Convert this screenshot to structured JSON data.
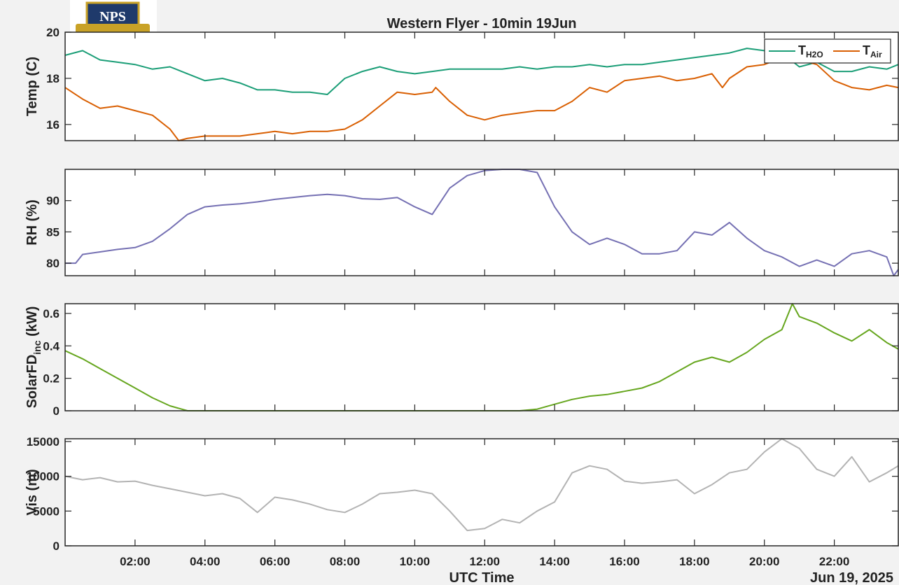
{
  "title": "Western Flyer - 10min 19Jun",
  "logo_text": "NPS",
  "xlabel": "UTC Time",
  "date_label": "Jun 19, 2025",
  "x_ticks": [
    "02:00",
    "04:00",
    "06:00",
    "08:00",
    "10:00",
    "12:00",
    "14:00",
    "16:00",
    "18:00",
    "20:00",
    "22:00"
  ],
  "x_range_hours": [
    0,
    23.83
  ],
  "colors": {
    "h2o": "#1b9e77",
    "air": "#d95f02",
    "rh": "#7570b3",
    "solar": "#66a61e",
    "vis": "#b3b3b3"
  },
  "chart_data": [
    {
      "type": "line",
      "ylabel": "Temp (C)",
      "ylim": [
        15.3,
        20
      ],
      "yticks": [
        16,
        18,
        20
      ],
      "legend": "top-right",
      "series": [
        {
          "name": "T_H2O",
          "label_main": "T",
          "label_sub": "H2O",
          "color_key": "h2o",
          "points": [
            [
              0,
              19.0
            ],
            [
              0.5,
              19.2
            ],
            [
              1,
              18.8
            ],
            [
              1.5,
              18.7
            ],
            [
              2,
              18.6
            ],
            [
              2.5,
              18.4
            ],
            [
              3,
              18.5
            ],
            [
              3.5,
              18.2
            ],
            [
              4,
              17.9
            ],
            [
              4.5,
              18.0
            ],
            [
              5,
              17.8
            ],
            [
              5.5,
              17.5
            ],
            [
              6,
              17.5
            ],
            [
              6.5,
              17.4
            ],
            [
              7,
              17.4
            ],
            [
              7.5,
              17.3
            ],
            [
              8,
              18.0
            ],
            [
              8.5,
              18.3
            ],
            [
              9,
              18.5
            ],
            [
              9.5,
              18.3
            ],
            [
              10,
              18.2
            ],
            [
              10.5,
              18.3
            ],
            [
              11,
              18.4
            ],
            [
              11.5,
              18.4
            ],
            [
              12,
              18.4
            ],
            [
              12.5,
              18.4
            ],
            [
              13,
              18.5
            ],
            [
              13.5,
              18.4
            ],
            [
              14,
              18.5
            ],
            [
              14.5,
              18.5
            ],
            [
              15,
              18.6
            ],
            [
              15.5,
              18.5
            ],
            [
              16,
              18.6
            ],
            [
              16.5,
              18.6
            ],
            [
              17,
              18.7
            ],
            [
              17.5,
              18.8
            ],
            [
              18,
              18.9
            ],
            [
              18.5,
              19.0
            ],
            [
              19,
              19.1
            ],
            [
              19.5,
              19.3
            ],
            [
              20,
              19.2
            ],
            [
              20.5,
              19.1
            ],
            [
              21,
              18.5
            ],
            [
              21.5,
              18.7
            ],
            [
              22,
              18.3
            ],
            [
              22.5,
              18.3
            ],
            [
              23,
              18.5
            ],
            [
              23.5,
              18.4
            ],
            [
              23.83,
              18.6
            ]
          ]
        },
        {
          "name": "T_Air",
          "label_main": "T",
          "label_sub": "Air",
          "color_key": "air",
          "points": [
            [
              0,
              17.6
            ],
            [
              0.5,
              17.1
            ],
            [
              1,
              16.7
            ],
            [
              1.5,
              16.8
            ],
            [
              2,
              16.6
            ],
            [
              2.5,
              16.4
            ],
            [
              3,
              15.8
            ],
            [
              3.25,
              15.3
            ],
            [
              3.5,
              15.4
            ],
            [
              4,
              15.5
            ],
            [
              4.5,
              15.5
            ],
            [
              5,
              15.5
            ],
            [
              5.5,
              15.6
            ],
            [
              6,
              15.7
            ],
            [
              6.5,
              15.6
            ],
            [
              7,
              15.7
            ],
            [
              7.5,
              15.7
            ],
            [
              8,
              15.8
            ],
            [
              8.5,
              16.2
            ],
            [
              9,
              16.8
            ],
            [
              9.5,
              17.4
            ],
            [
              10,
              17.3
            ],
            [
              10.5,
              17.4
            ],
            [
              10.6,
              17.6
            ],
            [
              11,
              17.0
            ],
            [
              11.5,
              16.4
            ],
            [
              12,
              16.2
            ],
            [
              12.5,
              16.4
            ],
            [
              13,
              16.5
            ],
            [
              13.5,
              16.6
            ],
            [
              14,
              16.6
            ],
            [
              14.5,
              17.0
            ],
            [
              15,
              17.6
            ],
            [
              15.5,
              17.4
            ],
            [
              16,
              17.9
            ],
            [
              16.5,
              18.0
            ],
            [
              17,
              18.1
            ],
            [
              17.5,
              17.9
            ],
            [
              18,
              18.0
            ],
            [
              18.5,
              18.2
            ],
            [
              18.8,
              17.6
            ],
            [
              19,
              18.0
            ],
            [
              19.5,
              18.5
            ],
            [
              20,
              18.6
            ],
            [
              20.5,
              18.9
            ],
            [
              21,
              18.8
            ],
            [
              21.5,
              18.6
            ],
            [
              22,
              17.9
            ],
            [
              22.5,
              17.6
            ],
            [
              23,
              17.5
            ],
            [
              23.5,
              17.7
            ],
            [
              23.83,
              17.6
            ]
          ]
        }
      ]
    },
    {
      "type": "line",
      "ylabel": "RH (%)",
      "ylim": [
        78,
        95
      ],
      "yticks": [
        80,
        85,
        90
      ],
      "series": [
        {
          "name": "",
          "color_key": "rh",
          "points": [
            [
              0,
              80.0
            ],
            [
              0.3,
              80.0
            ],
            [
              0.5,
              81.4
            ],
            [
              1,
              81.8
            ],
            [
              1.5,
              82.2
            ],
            [
              2,
              82.5
            ],
            [
              2.5,
              83.5
            ],
            [
              3,
              85.5
            ],
            [
              3.5,
              87.8
            ],
            [
              4,
              89.0
            ],
            [
              4.5,
              89.3
            ],
            [
              5,
              89.5
            ],
            [
              5.5,
              89.8
            ],
            [
              6,
              90.2
            ],
            [
              6.5,
              90.5
            ],
            [
              7,
              90.8
            ],
            [
              7.5,
              91.0
            ],
            [
              8,
              90.8
            ],
            [
              8.5,
              90.3
            ],
            [
              9,
              90.2
            ],
            [
              9.5,
              90.5
            ],
            [
              10,
              89.0
            ],
            [
              10.5,
              87.8
            ],
            [
              11,
              92.0
            ],
            [
              11.5,
              94.0
            ],
            [
              12,
              94.8
            ],
            [
              12.5,
              95.0
            ],
            [
              13,
              95.0
            ],
            [
              13.5,
              94.5
            ],
            [
              14,
              89.0
            ],
            [
              14.5,
              85.0
            ],
            [
              15,
              83.0
            ],
            [
              15.5,
              84.0
            ],
            [
              16,
              83.0
            ],
            [
              16.5,
              81.5
            ],
            [
              17,
              81.5
            ],
            [
              17.5,
              82.0
            ],
            [
              18,
              85.0
            ],
            [
              18.5,
              84.5
            ],
            [
              19,
              86.5
            ],
            [
              19.5,
              84.0
            ],
            [
              20,
              82.0
            ],
            [
              20.5,
              81.0
            ],
            [
              21,
              79.5
            ],
            [
              21.5,
              80.5
            ],
            [
              22,
              79.5
            ],
            [
              22.5,
              81.5
            ],
            [
              23,
              82.0
            ],
            [
              23.5,
              81.0
            ],
            [
              23.7,
              78.0
            ],
            [
              23.83,
              79.0
            ]
          ]
        }
      ]
    },
    {
      "type": "line",
      "ylabel": "SolarFD",
      "ylabel_sub": "inc",
      "ylabel_unit": "(kW)",
      "ylim": [
        0,
        0.66
      ],
      "yticks": [
        0,
        0.2,
        0.4,
        0.6
      ],
      "series": [
        {
          "name": "",
          "color_key": "solar",
          "points": [
            [
              0,
              0.37
            ],
            [
              0.5,
              0.32
            ],
            [
              1,
              0.26
            ],
            [
              1.5,
              0.2
            ],
            [
              2,
              0.14
            ],
            [
              2.5,
              0.08
            ],
            [
              3,
              0.03
            ],
            [
              3.5,
              0.0
            ],
            [
              4,
              0.0
            ],
            [
              5,
              0.0
            ],
            [
              6,
              0.0
            ],
            [
              7,
              0.0
            ],
            [
              8,
              0.0
            ],
            [
              9,
              0.0
            ],
            [
              10,
              0.0
            ],
            [
              11,
              0.0
            ],
            [
              12,
              0.0
            ],
            [
              13,
              0.0
            ],
            [
              13.5,
              0.01
            ],
            [
              14,
              0.04
            ],
            [
              14.5,
              0.07
            ],
            [
              15,
              0.09
            ],
            [
              15.5,
              0.1
            ],
            [
              16,
              0.12
            ],
            [
              16.5,
              0.14
            ],
            [
              17,
              0.18
            ],
            [
              17.5,
              0.24
            ],
            [
              18,
              0.3
            ],
            [
              18.5,
              0.33
            ],
            [
              19,
              0.3
            ],
            [
              19.5,
              0.36
            ],
            [
              20,
              0.44
            ],
            [
              20.5,
              0.5
            ],
            [
              20.8,
              0.66
            ],
            [
              21,
              0.58
            ],
            [
              21.5,
              0.54
            ],
            [
              22,
              0.48
            ],
            [
              22.5,
              0.43
            ],
            [
              23,
              0.5
            ],
            [
              23.5,
              0.42
            ],
            [
              23.83,
              0.38
            ]
          ]
        }
      ]
    },
    {
      "type": "line",
      "ylabel": "Vis (m)",
      "ylim": [
        0,
        15400
      ],
      "yticks": [
        0,
        5000,
        10000,
        15000
      ],
      "series": [
        {
          "name": "",
          "color_key": "vis",
          "points": [
            [
              0,
              10000
            ],
            [
              0.5,
              9500
            ],
            [
              1,
              9800
            ],
            [
              1.5,
              9200
            ],
            [
              2,
              9300
            ],
            [
              2.5,
              8700
            ],
            [
              3,
              8200
            ],
            [
              3.5,
              7700
            ],
            [
              4,
              7200
            ],
            [
              4.5,
              7500
            ],
            [
              5,
              6800
            ],
            [
              5.5,
              4800
            ],
            [
              6,
              7000
            ],
            [
              6.5,
              6600
            ],
            [
              7,
              6000
            ],
            [
              7.5,
              5200
            ],
            [
              8,
              4800
            ],
            [
              8.5,
              6000
            ],
            [
              9,
              7500
            ],
            [
              9.5,
              7700
            ],
            [
              10,
              8000
            ],
            [
              10.5,
              7500
            ],
            [
              11,
              5000
            ],
            [
              11.5,
              2200
            ],
            [
              12,
              2500
            ],
            [
              12.5,
              3800
            ],
            [
              13,
              3300
            ],
            [
              13.5,
              5000
            ],
            [
              14,
              6300
            ],
            [
              14.5,
              10500
            ],
            [
              15,
              11500
            ],
            [
              15.5,
              11000
            ],
            [
              16,
              9300
            ],
            [
              16.5,
              9000
            ],
            [
              17,
              9200
            ],
            [
              17.5,
              9500
            ],
            [
              18,
              7500
            ],
            [
              18.5,
              8800
            ],
            [
              19,
              10500
            ],
            [
              19.5,
              11000
            ],
            [
              20,
              13500
            ],
            [
              20.5,
              15400
            ],
            [
              21,
              14000
            ],
            [
              21.5,
              11000
            ],
            [
              22,
              10000
            ],
            [
              22.5,
              12800
            ],
            [
              23,
              9200
            ],
            [
              23.5,
              10500
            ],
            [
              23.83,
              11500
            ]
          ]
        }
      ]
    }
  ]
}
